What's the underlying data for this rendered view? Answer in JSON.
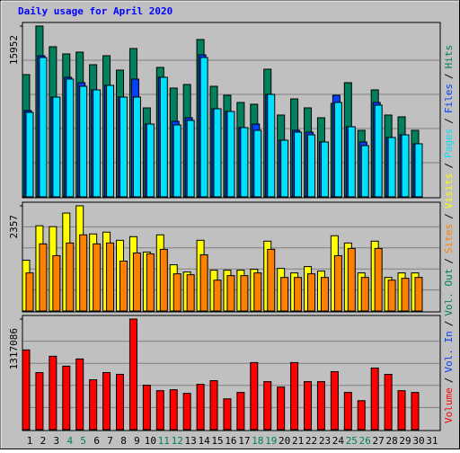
{
  "title": "Daily usage for April 2020",
  "chart_data": {
    "type": "bar",
    "categories": [
      "1",
      "2",
      "3",
      "4",
      "5",
      "6",
      "7",
      "8",
      "9",
      "10",
      "11",
      "12",
      "13",
      "14",
      "15",
      "16",
      "17",
      "18",
      "19",
      "20",
      "21",
      "22",
      "23",
      "24",
      "25",
      "26",
      "27",
      "28",
      "29",
      "30",
      "31"
    ],
    "category_colors": [
      "#000000",
      "#000000",
      "#000000",
      "#00805c",
      "#00805c",
      "#000000",
      "#000000",
      "#000000",
      "#000000",
      "#000000",
      "#00805c",
      "#00805c",
      "#000000",
      "#000000",
      "#000000",
      "#000000",
      "#000000",
      "#00805c",
      "#00805c",
      "#000000",
      "#000000",
      "#000000",
      "#000000",
      "#000000",
      "#00805c",
      "#00805c",
      "#000000",
      "#000000",
      "#000000",
      "#000000",
      "#000000"
    ],
    "separator": "/",
    "panels": [
      {
        "ylim": [
          0,
          15952
        ],
        "yticks": [
          15952
        ],
        "series": [
          {
            "name": "Hits",
            "color": "#00805c",
            "values": [
              11418,
              15952,
              14021,
              13350,
              13518,
              12342,
              13182,
              11838,
              13853,
              8312,
              12090,
              10159,
              10495,
              14693,
              10327,
              9487,
              8816,
              8648,
              11922,
              7640,
              9151,
              8312,
              7388,
              8732,
              10663,
              6213,
              9991,
              7640,
              7472,
              6213,
              null
            ]
          },
          {
            "name": "Files",
            "color": "#0040ff",
            "values": [
              8062,
              13182,
              9320,
              11167,
              10663,
              9991,
              10411,
              9320,
              10998,
              6801,
              11167,
              7053,
              7389,
              13266,
              8228,
              7976,
              6465,
              6801,
              9572,
              5290,
              6213,
              6045,
              5122,
              9488,
              6549,
              5122,
              8816,
              5541,
              5793,
              4954,
              null
            ]
          },
          {
            "name": "Pages",
            "color": "#00e0ff",
            "values": [
              7892,
              13014,
              9320,
              10999,
              10327,
              9991,
              10411,
              9320,
              9320,
              6801,
              11167,
              6717,
              7137,
              13014,
              8228,
              7976,
              6465,
              6213,
              9572,
              5290,
              6045,
              5793,
              5122,
              8816,
              6549,
              4786,
              8564,
              5541,
              5793,
              4954,
              null
            ]
          }
        ]
      },
      {
        "ylim": [
          0,
          2357
        ],
        "yticks": [
          2357
        ],
        "series": [
          {
            "name": "Visits",
            "color": "#ffff00",
            "values": [
              1138,
              1910,
              1890,
              2195,
              2357,
              1727,
              1768,
              1585,
              1666,
              1321,
              1707,
              1036,
              874,
              1585,
              914,
              914,
              914,
              935,
              1565,
              955,
              853,
              996,
              894,
              1687,
              1524,
              853,
              1565,
              752,
              853,
              853,
              null
            ]
          },
          {
            "name": "Sites",
            "color": "#ff8000",
            "values": [
              853,
              1504,
              1240,
              1524,
              1707,
              1504,
              1524,
              1118,
              1301,
              1280,
              1382,
              833,
              813,
              1260,
              691,
              793,
              793,
              853,
              1382,
              752,
              752,
              833,
              752,
              1240,
              1402,
              752,
              1402,
              691,
              732,
              752,
              null
            ]
          }
        ]
      },
      {
        "ylim": [
          0,
          1317086
        ],
        "yticks": [
          1317086
        ],
        "series": [
          {
            "name": "Volume",
            "color": "#ff0000",
            "values": [
              950000,
              680000,
              874000,
              756000,
              842000,
              594000,
              680000,
              659000,
              1317086,
              529000,
              464000,
              475000,
              432000,
              540000,
              583000,
              367000,
              443000,
              799000,
              572000,
              507000,
              799000,
              572000,
              572000,
              691000,
              443000,
              345000,
              734000,
              659000,
              464000,
              443000,
              null
            ]
          }
        ],
        "legend_extra": [
          {
            "name": "Vol. In",
            "color": "#0040ff"
          },
          {
            "name": "Vol. Out",
            "color": "#00805c"
          }
        ]
      }
    ]
  }
}
